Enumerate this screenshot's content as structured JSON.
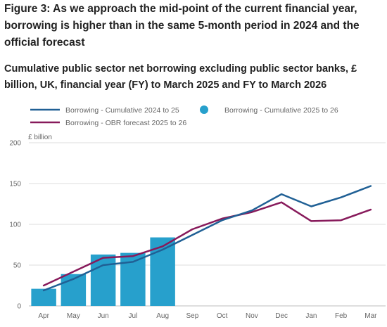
{
  "title": "Figure 3: As we approach the mid-point of the current financial year, borrowing is higher than in the same 5-month period in 2024 and the official forecast",
  "subtitle": "Cumulative public sector net borrowing excluding public sector banks, £ billion, UK, financial year (FY) to March 2025 and FY to March 2026",
  "chart_data": {
    "type": "bar",
    "categories": [
      "Apr",
      "May",
      "Jun",
      "Jul",
      "Aug",
      "Sep",
      "Oct",
      "Nov",
      "Dec",
      "Jan",
      "Feb",
      "Mar"
    ],
    "ylabel": "£ billion",
    "ylim": [
      0,
      200
    ],
    "yticks": [
      0,
      50,
      100,
      150,
      200
    ],
    "grid": true,
    "legend_position": "top",
    "series": [
      {
        "name": "Borrowing - Cumulative 2024 to 25",
        "type": "line",
        "color": "#206095",
        "values": [
          19,
          33,
          50,
          54,
          69,
          87,
          105,
          117,
          137,
          122,
          133,
          147
        ]
      },
      {
        "name": "Borrowing - Cumulative 2025 to 26",
        "type": "bar",
        "color": "#27a0cc",
        "values": [
          21,
          39,
          63,
          65,
          84,
          null,
          null,
          null,
          null,
          null,
          null,
          null
        ]
      },
      {
        "name": "Borrowing - OBR forecast 2025 to 26",
        "type": "line",
        "color": "#871a5b",
        "values": [
          25,
          42,
          59,
          61,
          73,
          94,
          107,
          115,
          127,
          104,
          105,
          118
        ]
      }
    ]
  }
}
